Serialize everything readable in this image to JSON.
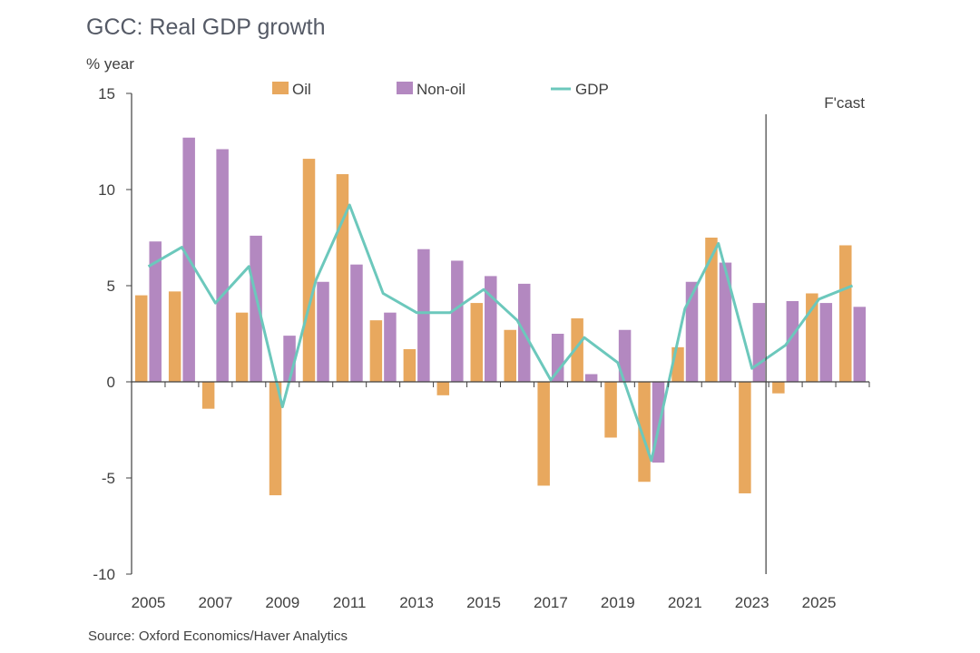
{
  "chart_data": {
    "type": "bar",
    "title": "GCC: Real GDP growth",
    "ylabel": "% year",
    "source": "Source: Oxford Economics/Haver Analytics",
    "forecast_label": "F'cast",
    "forecast_start_year": 2024,
    "ylim": [
      -10,
      15
    ],
    "yticks": [
      15,
      10,
      5,
      0,
      -5,
      -10
    ],
    "xtick_labels": [
      "2005",
      "2007",
      "2009",
      "2011",
      "2013",
      "2015",
      "2017",
      "2019",
      "2021",
      "2023",
      "2025"
    ],
    "categories": [
      2005,
      2006,
      2007,
      2008,
      2009,
      2010,
      2011,
      2012,
      2013,
      2014,
      2015,
      2016,
      2017,
      2018,
      2019,
      2020,
      2021,
      2022,
      2023,
      2024,
      2025,
      2026
    ],
    "series": [
      {
        "name": "Oil",
        "kind": "bar",
        "color": "#e8a85e",
        "values": [
          4.5,
          4.7,
          -1.4,
          3.6,
          -5.9,
          11.6,
          10.8,
          3.2,
          1.7,
          -0.7,
          4.1,
          2.7,
          -5.4,
          3.3,
          -2.9,
          -5.2,
          1.8,
          7.5,
          -5.8,
          -0.6,
          4.6,
          7.1
        ]
      },
      {
        "name": "Non-oil",
        "kind": "bar",
        "color": "#b388c0",
        "values": [
          7.3,
          12.7,
          12.1,
          7.6,
          2.4,
          5.2,
          6.1,
          3.6,
          6.9,
          6.3,
          5.5,
          5.1,
          2.5,
          0.4,
          2.7,
          -4.2,
          5.2,
          6.2,
          4.1,
          4.2,
          4.1,
          3.9
        ]
      },
      {
        "name": "GDP",
        "kind": "line",
        "color": "#6cc8bc",
        "values": [
          6.0,
          7.0,
          4.1,
          6.0,
          -1.3,
          5.3,
          9.2,
          4.6,
          3.6,
          3.6,
          4.8,
          3.2,
          0.1,
          2.3,
          1.0,
          -4.1,
          3.8,
          7.2,
          0.7,
          1.9,
          4.3,
          5.0
        ]
      }
    ],
    "legend": {
      "position": "top-center",
      "entries": [
        "Oil",
        "Non-oil",
        "GDP"
      ]
    },
    "grid": false
  }
}
